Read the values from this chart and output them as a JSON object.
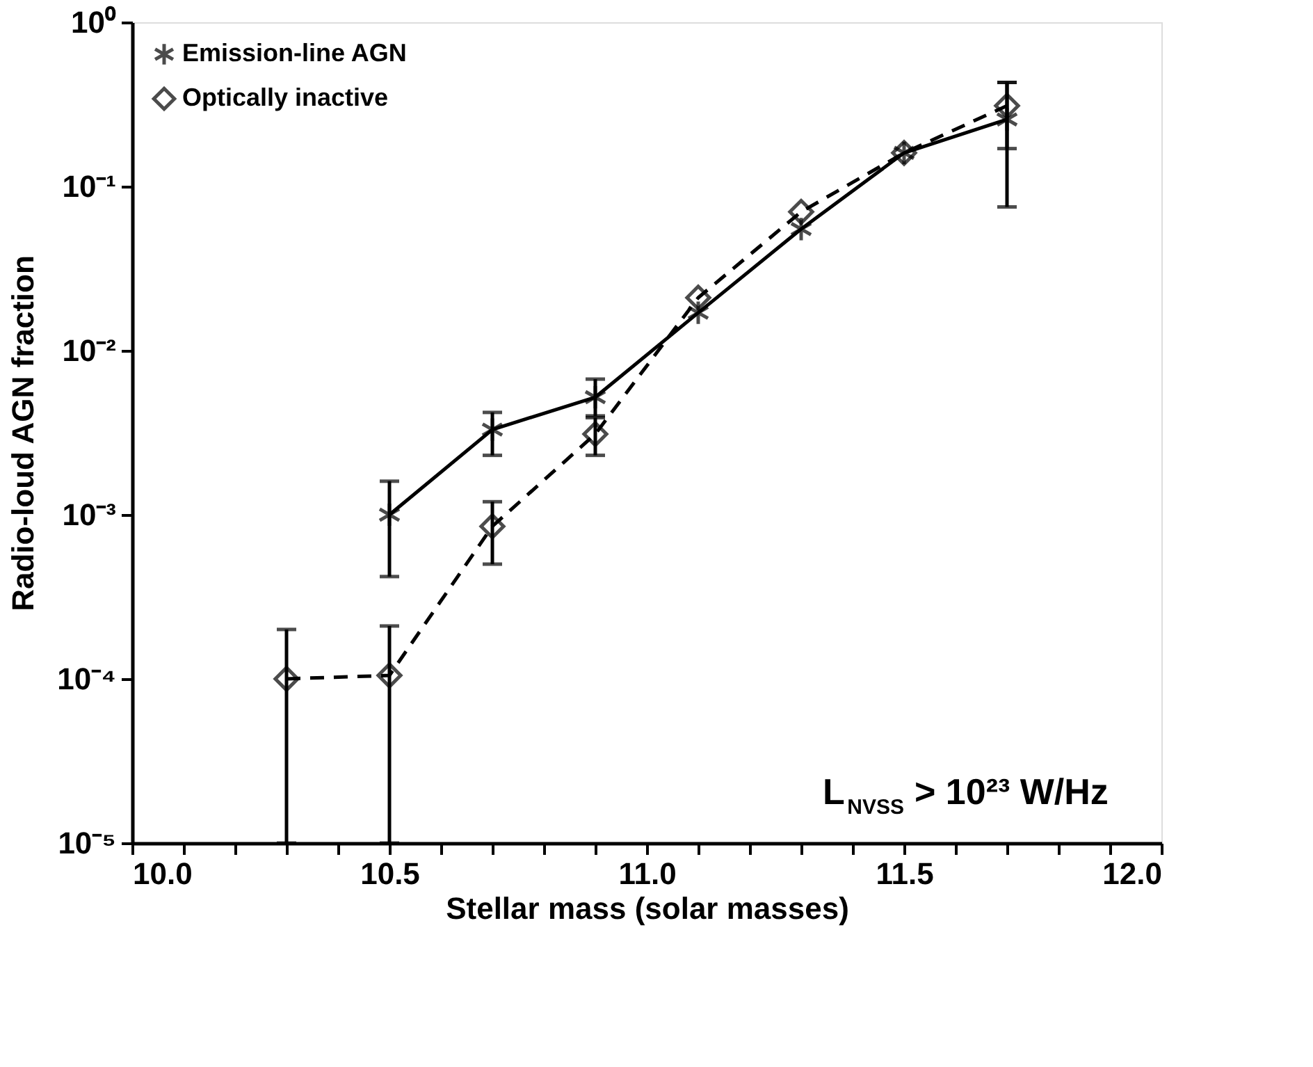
{
  "chart_data": {
    "type": "line",
    "xlabel": "Stellar mass (solar masses)",
    "ylabel": "Radio-loud AGN fraction",
    "log": "y",
    "grid": false,
    "legend": "top left",
    "xlim": [
      10.0,
      12.0
    ],
    "xticks": [
      {
        "value": 10.0,
        "label": "10.0"
      },
      {
        "value": 10.1,
        "label": null
      },
      {
        "value": 10.2,
        "label": null
      },
      {
        "value": 10.3,
        "label": null
      },
      {
        "value": 10.4,
        "label": null
      },
      {
        "value": 10.5,
        "label": "10.5"
      },
      {
        "value": 10.6,
        "label": null
      },
      {
        "value": 10.7,
        "label": null
      },
      {
        "value": 10.8,
        "label": null
      },
      {
        "value": 10.9,
        "label": null
      },
      {
        "value": 11.0,
        "label": "11.0"
      },
      {
        "value": 11.1,
        "label": null
      },
      {
        "value": 11.2,
        "label": null
      },
      {
        "value": 11.3,
        "label": null
      },
      {
        "value": 11.4,
        "label": null
      },
      {
        "value": 11.5,
        "label": "11.5"
      },
      {
        "value": 11.6,
        "label": null
      },
      {
        "value": 11.7,
        "label": null
      },
      {
        "value": 11.8,
        "label": null
      },
      {
        "value": 11.9,
        "label": null
      },
      {
        "value": 12.0,
        "label": "12.0"
      }
    ],
    "ylim": [
      1e-05,
      1
    ],
    "yticks": [
      {
        "value": 1e-05,
        "label": "10⁻⁵"
      },
      {
        "value": 0.0001,
        "label": "10⁻⁴"
      },
      {
        "value": 0.001,
        "label": "10⁻³"
      },
      {
        "value": 0.01,
        "label": "10⁻²"
      },
      {
        "value": 0.1,
        "label": "10⁻¹"
      },
      {
        "value": 1,
        "label": "10⁰"
      }
    ],
    "annotations": [
      "L$_{NVSS}$ > 10²³ W/Hz"
    ],
    "series": [
      {
        "name": "Emission-line AGN",
        "color": "#000000",
        "marker": "cross",
        "line_style": "solid",
        "x": [
          10.5,
          10.7,
          10.9,
          11.1,
          11.3,
          11.5,
          11.7
        ],
        "values": [
          0.001,
          0.0033,
          0.0052,
          0.017,
          0.055,
          0.16,
          0.256
        ],
        "errors": [
          [
            0.00042,
            0.0016
          ],
          [
            0.0023,
            0.0042
          ],
          [
            0.004,
            0.0067
          ],
          null,
          null,
          null,
          [
            0.075,
            0.43
          ]
        ]
      },
      {
        "name": "Optically inactive",
        "color": "#000000",
        "marker": "diamond",
        "line_style": "dashed",
        "x": [
          10.3,
          10.5,
          10.7,
          10.9,
          11.1,
          11.3,
          11.5,
          11.7
        ],
        "values": [
          0.0001,
          0.000105,
          0.00085,
          0.0031,
          0.021,
          0.07,
          0.16,
          0.31
        ],
        "errors": [
          [
            1e-05,
            0.0002
          ],
          [
            1e-05,
            0.00021
          ],
          [
            0.0005,
            0.0012
          ],
          [
            0.0023,
            0.0039
          ],
          null,
          null,
          null,
          [
            0.17,
            0.43
          ]
        ]
      }
    ]
  }
}
